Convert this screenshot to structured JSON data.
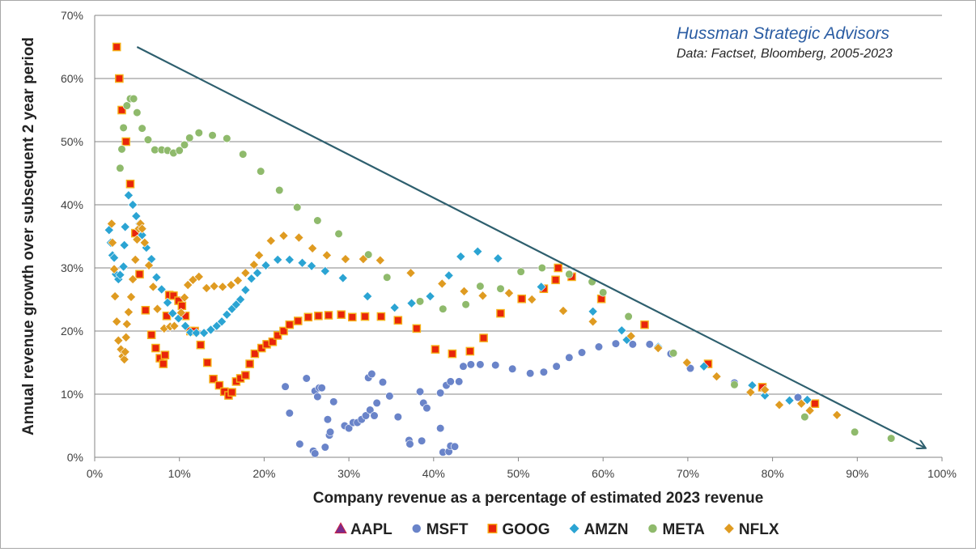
{
  "chart_data": {
    "type": "scatter",
    "xlabel": "Company revenue as a percentage of estimated 2023 revenue",
    "ylabel": "Annual revenue growth over subsequent 2 year period",
    "xlim": [
      0,
      100
    ],
    "ylim": [
      0,
      70
    ],
    "x_ticks": [
      "0%",
      "10%",
      "20%",
      "30%",
      "40%",
      "50%",
      "60%",
      "70%",
      "80%",
      "90%",
      "100%"
    ],
    "y_ticks": [
      "0%",
      "10%",
      "20%",
      "30%",
      "40%",
      "50%",
      "60%",
      "70%"
    ],
    "grid": "horizontal",
    "legend_position": "bottom",
    "annotations": {
      "title": "Hussman Strategic Advisors",
      "subtitle": "Data: Factset, Bloomberg, 2005-2023"
    },
    "trend_arrow": {
      "from": [
        5,
        65
      ],
      "to": [
        98,
        1.5
      ]
    },
    "series": [
      {
        "name": "AAPL",
        "marker": "triangle",
        "color": "#7a2c8c",
        "points": []
      },
      {
        "name": "MSFT",
        "marker": "circle",
        "color": "#6a84c9",
        "points": [
          [
            22.5,
            11.2
          ],
          [
            23,
            7
          ],
          [
            24.2,
            2.1
          ],
          [
            25,
            12.5
          ],
          [
            25.8,
            1
          ],
          [
            26,
            0.6
          ],
          [
            26,
            10.5
          ],
          [
            26.3,
            9.6
          ],
          [
            26.5,
            11
          ],
          [
            26.8,
            11
          ],
          [
            27.2,
            1.6
          ],
          [
            27.5,
            6
          ],
          [
            27.7,
            3.5
          ],
          [
            27.8,
            4
          ],
          [
            28.2,
            8.8
          ],
          [
            29.5,
            5
          ],
          [
            30,
            4.6
          ],
          [
            30.5,
            5.5
          ],
          [
            31,
            5.5
          ],
          [
            31.5,
            6
          ],
          [
            32,
            6.6
          ],
          [
            32.3,
            12.6
          ],
          [
            32.5,
            7.5
          ],
          [
            32.7,
            13.2
          ],
          [
            33,
            6.6
          ],
          [
            33.3,
            8.6
          ],
          [
            34,
            11.9
          ],
          [
            34.8,
            9.7
          ],
          [
            35.8,
            6.4
          ],
          [
            37.1,
            2.7
          ],
          [
            37.2,
            2.1
          ],
          [
            38.4,
            10.4
          ],
          [
            38.6,
            2.6
          ],
          [
            38.8,
            8.6
          ],
          [
            39.2,
            7.8
          ],
          [
            40.8,
            10.2
          ],
          [
            40.8,
            4.6
          ],
          [
            41.1,
            0.8
          ],
          [
            41.5,
            11.4
          ],
          [
            41.8,
            0.9
          ],
          [
            42,
            1.8
          ],
          [
            42.5,
            1.7
          ],
          [
            42,
            12
          ],
          [
            43,
            12
          ],
          [
            43.5,
            14.4
          ],
          [
            44.4,
            14.7
          ],
          [
            45.5,
            14.7
          ],
          [
            47.3,
            14.6
          ],
          [
            49.3,
            14
          ],
          [
            51.4,
            13.3
          ],
          [
            53,
            13.5
          ],
          [
            54.5,
            14.4
          ],
          [
            56,
            15.8
          ],
          [
            57.5,
            16.6
          ],
          [
            59.5,
            17.5
          ],
          [
            61.5,
            18
          ],
          [
            63.5,
            17.9
          ],
          [
            65.5,
            17.9
          ],
          [
            68,
            16.4
          ],
          [
            70.3,
            14.1
          ],
          [
            75.5,
            11.8
          ],
          [
            79,
            10.8
          ],
          [
            83,
            9.5
          ]
        ]
      },
      {
        "name": "GOOG",
        "marker": "square",
        "color": "#e8250a",
        "points": [
          [
            2.6,
            65
          ],
          [
            2.9,
            60
          ],
          [
            3.2,
            55
          ],
          [
            3.7,
            50
          ],
          [
            4.2,
            43.3
          ],
          [
            4.8,
            35.5
          ],
          [
            5.3,
            29
          ],
          [
            6,
            23.3
          ],
          [
            6.7,
            19.4
          ],
          [
            7.2,
            17.3
          ],
          [
            7.7,
            15.7
          ],
          [
            8.1,
            14.8
          ],
          [
            8.3,
            16.2
          ],
          [
            8.5,
            22.4
          ],
          [
            8.8,
            25.7
          ],
          [
            9.3,
            25.6
          ],
          [
            9.9,
            24.8
          ],
          [
            10.3,
            24
          ],
          [
            10.7,
            22.4
          ],
          [
            11.3,
            20
          ],
          [
            11.8,
            20
          ],
          [
            12.5,
            17.8
          ],
          [
            13.3,
            15
          ],
          [
            14,
            12.4
          ],
          [
            14.7,
            11.4
          ],
          [
            15.3,
            10.4
          ],
          [
            15.8,
            9.8
          ],
          [
            16.2,
            10.3
          ],
          [
            16.7,
            12
          ],
          [
            17.2,
            12.5
          ],
          [
            17.8,
            13
          ],
          [
            18.3,
            14.8
          ],
          [
            18.9,
            16.4
          ],
          [
            19.7,
            17.3
          ],
          [
            20.3,
            17.9
          ],
          [
            21,
            18.3
          ],
          [
            21.6,
            19.3
          ],
          [
            22.3,
            20
          ],
          [
            23,
            21
          ],
          [
            24,
            21.6
          ],
          [
            25.2,
            22.2
          ],
          [
            26.4,
            22.4
          ],
          [
            27.6,
            22.5
          ],
          [
            29.1,
            22.6
          ],
          [
            30.4,
            22.2
          ],
          [
            31.9,
            22.3
          ],
          [
            33.8,
            22.3
          ],
          [
            35.8,
            21.7
          ],
          [
            38,
            20.4
          ],
          [
            40.2,
            17.1
          ],
          [
            42.2,
            16.4
          ],
          [
            44.3,
            16.8
          ],
          [
            45.9,
            18.9
          ],
          [
            47.9,
            22.8
          ],
          [
            50.4,
            25.1
          ],
          [
            53,
            26.7
          ],
          [
            54.7,
            30
          ],
          [
            54.4,
            28.1
          ],
          [
            56.3,
            28.6
          ],
          [
            59.8,
            25.1
          ],
          [
            64.9,
            21
          ],
          [
            72.4,
            14.8
          ],
          [
            78.8,
            11.1
          ],
          [
            85,
            8.5
          ]
        ]
      },
      {
        "name": "AMZN",
        "marker": "diamond",
        "color": "#2ba4d3",
        "points": [
          [
            1.7,
            36
          ],
          [
            1.9,
            34
          ],
          [
            2.1,
            32
          ],
          [
            2.3,
            31.6
          ],
          [
            2.5,
            29
          ],
          [
            2.8,
            28.2
          ],
          [
            3,
            28.9
          ],
          [
            3.4,
            30.2
          ],
          [
            3.5,
            33.6
          ],
          [
            3.6,
            36.5
          ],
          [
            4,
            41.5
          ],
          [
            4.5,
            40
          ],
          [
            4.9,
            38.2
          ],
          [
            5.3,
            37
          ],
          [
            5.6,
            35.2
          ],
          [
            6.1,
            33.2
          ],
          [
            6.7,
            31.4
          ],
          [
            7.3,
            28.5
          ],
          [
            7.9,
            26.6
          ],
          [
            8.6,
            24.5
          ],
          [
            9.2,
            22.8
          ],
          [
            9.9,
            22
          ],
          [
            10.7,
            20.8
          ],
          [
            11.3,
            19.8
          ],
          [
            12,
            19.7
          ],
          [
            12.9,
            19.7
          ],
          [
            13.7,
            20.2
          ],
          [
            14.4,
            20.8
          ],
          [
            15,
            21.5
          ],
          [
            15.6,
            22.6
          ],
          [
            16.2,
            23.5
          ],
          [
            16.7,
            24.2
          ],
          [
            17.2,
            25
          ],
          [
            17.8,
            26.5
          ],
          [
            18.5,
            28.3
          ],
          [
            19.2,
            29.2
          ],
          [
            20.2,
            30.4
          ],
          [
            21.6,
            31.3
          ],
          [
            23,
            31.3
          ],
          [
            24.5,
            30.8
          ],
          [
            25.6,
            30.3
          ],
          [
            27.2,
            29.5
          ],
          [
            29.3,
            28.4
          ],
          [
            32.2,
            25.5
          ],
          [
            35.4,
            23.7
          ],
          [
            37.4,
            24.4
          ],
          [
            39.6,
            25.5
          ],
          [
            41.8,
            28.8
          ],
          [
            43.2,
            31.8
          ],
          [
            45.2,
            32.6
          ],
          [
            47.6,
            31.5
          ],
          [
            52.7,
            27
          ],
          [
            58.8,
            23.1
          ],
          [
            62.2,
            20.1
          ],
          [
            62.8,
            18.6
          ],
          [
            66.5,
            17.5
          ],
          [
            71.9,
            14.4
          ],
          [
            77.6,
            11.4
          ],
          [
            79.1,
            9.8
          ],
          [
            82,
            9
          ],
          [
            84.1,
            9.1
          ]
        ]
      },
      {
        "name": "META",
        "marker": "circle",
        "color": "#8fba6c",
        "points": [
          [
            3,
            45.8
          ],
          [
            3.2,
            48.8
          ],
          [
            3.4,
            52.2
          ],
          [
            3.8,
            55.7
          ],
          [
            4.2,
            56.8
          ],
          [
            4.6,
            56.8
          ],
          [
            5,
            54.6
          ],
          [
            5.6,
            52.1
          ],
          [
            6.3,
            50.3
          ],
          [
            7.1,
            48.7
          ],
          [
            7.9,
            48.7
          ],
          [
            8.6,
            48.6
          ],
          [
            9.3,
            48.2
          ],
          [
            10,
            48.6
          ],
          [
            10.6,
            49.5
          ],
          [
            11.2,
            50.6
          ],
          [
            12.3,
            51.4
          ],
          [
            13.9,
            51
          ],
          [
            15.6,
            50.5
          ],
          [
            17.5,
            48
          ],
          [
            19.6,
            45.3
          ],
          [
            21.8,
            42.3
          ],
          [
            23.9,
            39.6
          ],
          [
            26.3,
            37.5
          ],
          [
            28.8,
            35.4
          ],
          [
            32.3,
            32.1
          ],
          [
            34.5,
            28.5
          ],
          [
            38.4,
            24.7
          ],
          [
            41.1,
            23.5
          ],
          [
            43.8,
            24.2
          ],
          [
            45.5,
            27.1
          ],
          [
            47.9,
            26.7
          ],
          [
            50.3,
            29.4
          ],
          [
            52.8,
            30
          ],
          [
            56,
            29
          ],
          [
            58.7,
            27.8
          ],
          [
            60,
            26.1
          ],
          [
            63,
            22.3
          ],
          [
            68.3,
            16.5
          ],
          [
            75.5,
            11.5
          ],
          [
            83.8,
            6.4
          ],
          [
            89.7,
            4
          ],
          [
            94,
            3
          ]
        ]
      },
      {
        "name": "NFLX",
        "marker": "diamond",
        "color": "#df9b21",
        "points": [
          [
            2,
            37
          ],
          [
            2.1,
            34
          ],
          [
            2.3,
            29.8
          ],
          [
            2.4,
            25.5
          ],
          [
            2.6,
            21.5
          ],
          [
            2.8,
            18.5
          ],
          [
            3.1,
            17.1
          ],
          [
            3.3,
            16
          ],
          [
            3.5,
            15.5
          ],
          [
            3.6,
            16.7
          ],
          [
            3.7,
            19
          ],
          [
            3.8,
            21.1
          ],
          [
            4,
            23
          ],
          [
            4.3,
            25.4
          ],
          [
            4.5,
            28.2
          ],
          [
            4.8,
            31.3
          ],
          [
            5,
            34.5
          ],
          [
            5.2,
            36.2
          ],
          [
            5.4,
            37
          ],
          [
            5.6,
            36.2
          ],
          [
            5.9,
            34
          ],
          [
            6.4,
            30.4
          ],
          [
            6.9,
            27
          ],
          [
            7.4,
            23.5
          ],
          [
            8.2,
            20.4
          ],
          [
            8.9,
            20.7
          ],
          [
            9.4,
            20.8
          ],
          [
            10.2,
            22.9
          ],
          [
            10.6,
            25.3
          ],
          [
            11,
            27.3
          ],
          [
            11.6,
            28.1
          ],
          [
            12.3,
            28.6
          ],
          [
            13.2,
            26.8
          ],
          [
            14.1,
            27.1
          ],
          [
            15.1,
            27
          ],
          [
            16.1,
            27.3
          ],
          [
            16.9,
            28
          ],
          [
            17.8,
            29.2
          ],
          [
            18.8,
            30.5
          ],
          [
            19.4,
            32
          ],
          [
            20.8,
            34.3
          ],
          [
            22.3,
            35.1
          ],
          [
            24.1,
            34.8
          ],
          [
            25.7,
            33.1
          ],
          [
            27.4,
            32
          ],
          [
            29.6,
            31.4
          ],
          [
            31.7,
            31.4
          ],
          [
            33.7,
            31.2
          ],
          [
            37.3,
            29.2
          ],
          [
            41,
            27.5
          ],
          [
            43.6,
            26.3
          ],
          [
            45.8,
            25.6
          ],
          [
            48.9,
            26
          ],
          [
            51.6,
            25
          ],
          [
            55.3,
            23.2
          ],
          [
            58.8,
            21.5
          ],
          [
            63.3,
            19.2
          ],
          [
            66.5,
            17.3
          ],
          [
            69.9,
            15
          ],
          [
            73.4,
            12.8
          ],
          [
            77.4,
            10.3
          ],
          [
            79.1,
            10.7
          ],
          [
            80.8,
            8.3
          ],
          [
            83.4,
            8.5
          ],
          [
            84.4,
            7.4
          ],
          [
            87.6,
            6.7
          ]
        ]
      }
    ]
  }
}
